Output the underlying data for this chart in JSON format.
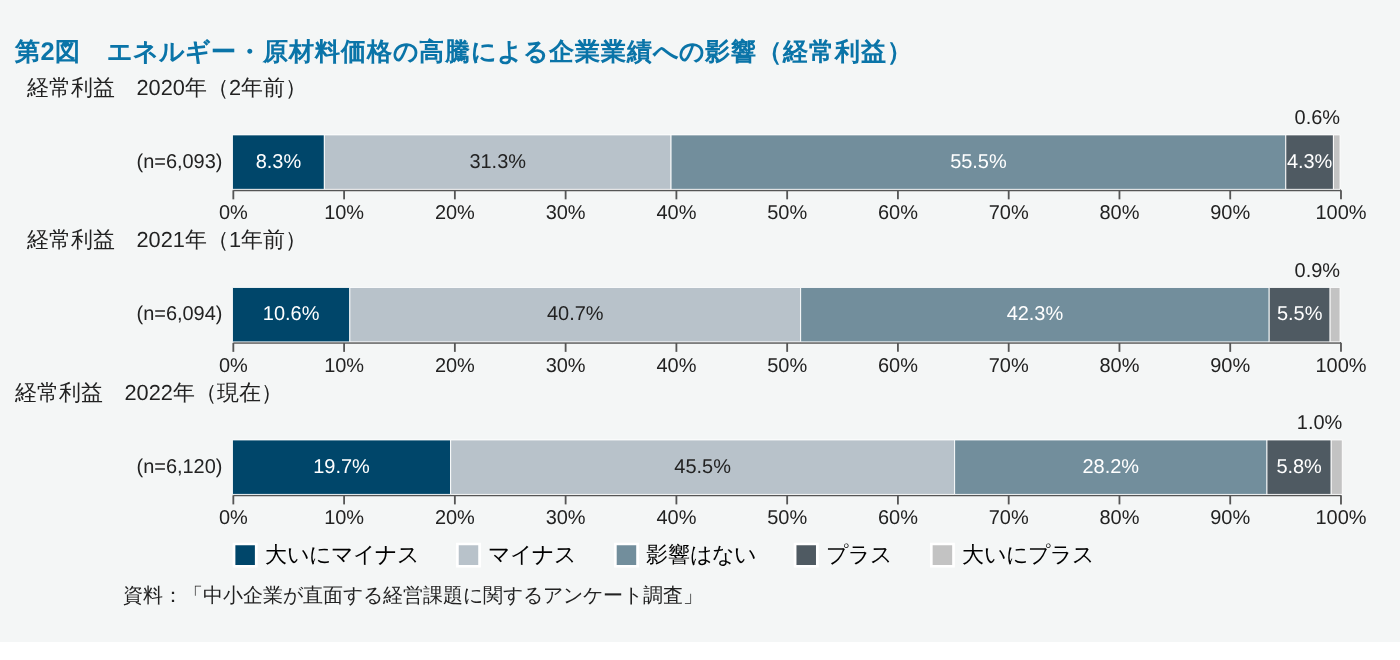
{
  "chart_data": [
    {
      "type": "bar",
      "orientation": "horizontal",
      "stacked": true,
      "title": "第2図　エネルギー・原材料価格の高騰による企業業績への影響（経常利益）",
      "subtitle": "経常利益　2020年（2年前）",
      "categories": [
        "(n=6,093)"
      ],
      "xlim": [
        0,
        100
      ],
      "xticks": [
        {
          "value": 0,
          "label": "0%"
        },
        {
          "value": 10,
          "label": "10%"
        },
        {
          "value": 20,
          "label": "20%"
        },
        {
          "value": 30,
          "label": "30%"
        },
        {
          "value": 40,
          "label": "40%"
        },
        {
          "value": 50,
          "label": "50%"
        },
        {
          "value": 60,
          "label": "60%"
        },
        {
          "value": 70,
          "label": "70%"
        },
        {
          "value": 80,
          "label": "80%"
        },
        {
          "value": 90,
          "label": "90%"
        },
        {
          "value": 100,
          "label": "100%"
        }
      ],
      "grid": false,
      "legend": false,
      "series": [
        {
          "color": "#00466a",
          "values": [
            8.3
          ],
          "value_labels": [
            "8.3%"
          ]
        },
        {
          "color": "#b8c2ca",
          "values": [
            31.3
          ],
          "value_labels": [
            "31.3%"
          ]
        },
        {
          "color": "#728e9c",
          "values": [
            55.5
          ],
          "value_labels": [
            "55.5%"
          ]
        },
        {
          "color": "#4f5a62",
          "values": [
            4.3
          ],
          "value_labels": [
            "4.3%"
          ]
        },
        {
          "color": "#c3c3c3",
          "values": [
            0.6
          ],
          "value_labels": [
            "0.6%"
          ]
        }
      ]
    },
    {
      "type": "bar",
      "orientation": "horizontal",
      "stacked": true,
      "subtitle": "経常利益　2021年（1年前）",
      "categories": [
        "(n=6,094)"
      ],
      "xlim": [
        0,
        100
      ],
      "xticks": [
        {
          "value": 0,
          "label": "0%"
        },
        {
          "value": 10,
          "label": "10%"
        },
        {
          "value": 20,
          "label": "20%"
        },
        {
          "value": 30,
          "label": "30%"
        },
        {
          "value": 40,
          "label": "40%"
        },
        {
          "value": 50,
          "label": "50%"
        },
        {
          "value": 60,
          "label": "60%"
        },
        {
          "value": 70,
          "label": "70%"
        },
        {
          "value": 80,
          "label": "80%"
        },
        {
          "value": 90,
          "label": "90%"
        },
        {
          "value": 100,
          "label": "100%"
        }
      ],
      "grid": false,
      "legend": false,
      "series": [
        {
          "color": "#00466a",
          "values": [
            10.6
          ],
          "value_labels": [
            "10.6%"
          ]
        },
        {
          "color": "#b8c2ca",
          "values": [
            40.7
          ],
          "value_labels": [
            "40.7%"
          ]
        },
        {
          "color": "#728e9c",
          "values": [
            42.3
          ],
          "value_labels": [
            "42.3%"
          ]
        },
        {
          "color": "#4f5a62",
          "values": [
            5.5
          ],
          "value_labels": [
            "5.5%"
          ]
        },
        {
          "color": "#c3c3c3",
          "values": [
            0.9
          ],
          "value_labels": [
            "0.9%"
          ]
        }
      ]
    },
    {
      "type": "bar",
      "orientation": "horizontal",
      "stacked": true,
      "subtitle": "経常利益　2022年（現在）",
      "categories": [
        "(n=6,120)"
      ],
      "xlim": [
        0,
        100
      ],
      "xticks": [
        {
          "value": 0,
          "label": "0%"
        },
        {
          "value": 10,
          "label": "10%"
        },
        {
          "value": 20,
          "label": "20%"
        },
        {
          "value": 30,
          "label": "30%"
        },
        {
          "value": 40,
          "label": "40%"
        },
        {
          "value": 50,
          "label": "50%"
        },
        {
          "value": 60,
          "label": "60%"
        },
        {
          "value": 70,
          "label": "70%"
        },
        {
          "value": 80,
          "label": "80%"
        },
        {
          "value": 90,
          "label": "90%"
        },
        {
          "value": 100,
          "label": "100%"
        }
      ],
      "grid": false,
      "legend": "bottom",
      "annotations": [
        "資料：「中小企業が直面する経営課題に関するアンケート調査」"
      ],
      "series": [
        {
          "name": "大いにマイナス",
          "color": "#00466a",
          "values": [
            19.7
          ],
          "value_labels": [
            "19.7%"
          ]
        },
        {
          "name": "マイナス",
          "color": "#b8c2ca",
          "values": [
            45.5
          ],
          "value_labels": [
            "45.5%"
          ]
        },
        {
          "name": "影響はない",
          "color": "#728e9c",
          "values": [
            28.2
          ],
          "value_labels": [
            "28.2%"
          ]
        },
        {
          "name": "プラス",
          "color": "#4f5a62",
          "values": [
            5.8
          ],
          "value_labels": [
            "5.8%"
          ]
        },
        {
          "name": "大いにプラス",
          "color": "#c3c3c3",
          "values": [
            1.0
          ],
          "value_labels": [
            "1.0%"
          ]
        }
      ]
    }
  ]
}
